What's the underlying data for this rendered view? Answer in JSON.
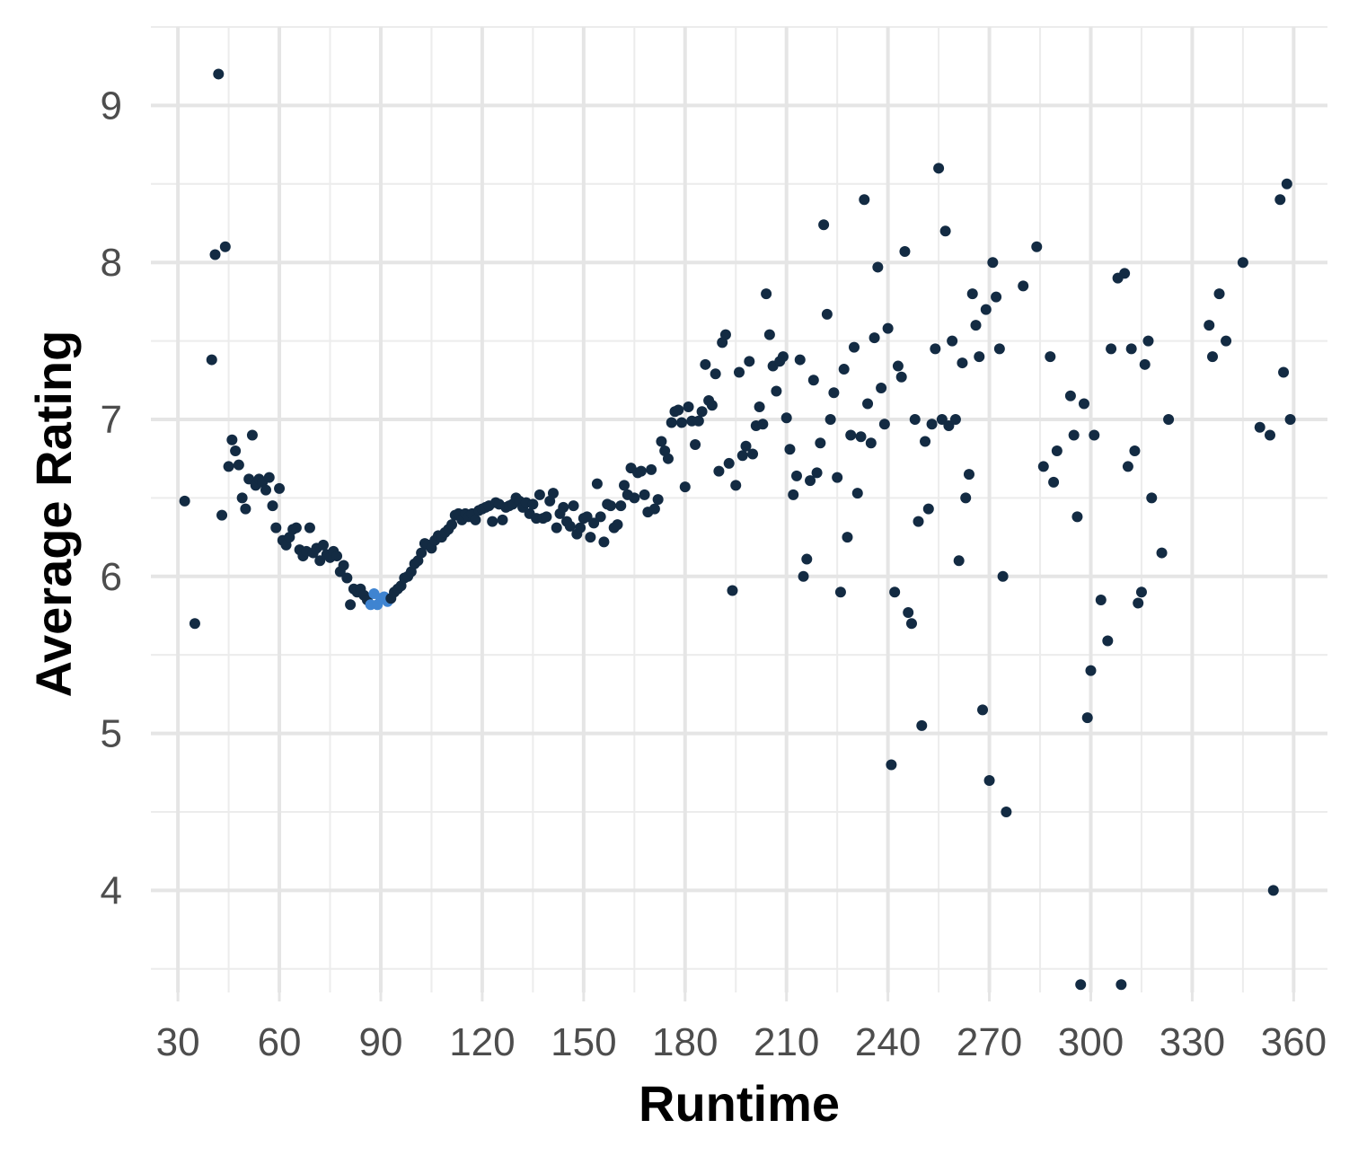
{
  "chart_data": {
    "type": "scatter",
    "xlabel": "Runtime",
    "ylabel": "Average Rating",
    "xlim": [
      22,
      370
    ],
    "ylim": [
      3.35,
      9.5
    ],
    "x_ticks": [
      30,
      60,
      90,
      120,
      150,
      180,
      210,
      240,
      270,
      300,
      330,
      360
    ],
    "y_ticks": [
      4,
      5,
      6,
      7,
      8,
      9
    ],
    "grid": true,
    "legend": "none",
    "colors": {
      "point": "#132B43",
      "point_high_count": "#3F84D1",
      "grid": "#e5e5e5"
    },
    "points": [
      [
        32,
        6.48
      ],
      [
        35,
        5.7
      ],
      [
        40,
        7.38
      ],
      [
        41,
        8.05
      ],
      [
        42,
        9.2
      ],
      [
        43,
        6.39
      ],
      [
        44,
        8.1
      ],
      [
        45,
        6.7
      ],
      [
        46,
        6.87
      ],
      [
        47,
        6.8
      ],
      [
        48,
        6.71
      ],
      [
        49,
        6.5
      ],
      [
        50,
        6.43
      ],
      [
        51,
        6.62
      ],
      [
        52,
        6.9
      ],
      [
        53,
        6.58
      ],
      [
        54,
        6.62
      ],
      [
        55,
        6.6
      ],
      [
        56,
        6.55
      ],
      [
        57,
        6.63
      ],
      [
        58,
        6.45
      ],
      [
        59,
        6.31
      ],
      [
        60,
        6.56
      ],
      [
        61,
        6.23
      ],
      [
        62,
        6.2
      ],
      [
        63,
        6.25
      ],
      [
        64,
        6.3
      ],
      [
        65,
        6.31
      ],
      [
        66,
        6.17
      ],
      [
        67,
        6.13
      ],
      [
        68,
        6.16
      ],
      [
        69,
        6.31
      ],
      [
        70,
        6.15
      ],
      [
        71,
        6.18
      ],
      [
        72,
        6.1
      ],
      [
        73,
        6.2
      ],
      [
        74,
        6.14
      ],
      [
        75,
        6.12
      ],
      [
        76,
        6.16
      ],
      [
        77,
        6.13
      ],
      [
        78,
        6.03
      ],
      [
        79,
        6.07
      ],
      [
        80,
        5.99
      ],
      [
        81,
        5.82
      ],
      [
        82,
        5.92
      ],
      [
        83,
        5.9
      ],
      [
        84,
        5.92
      ],
      [
        85,
        5.88
      ],
      [
        86,
        5.85
      ],
      [
        87,
        5.82
      ],
      [
        88,
        5.89
      ],
      [
        89,
        5.82
      ],
      [
        90,
        5.86
      ],
      [
        91,
        5.87
      ],
      [
        92,
        5.84
      ],
      [
        93,
        5.86
      ],
      [
        94,
        5.9
      ],
      [
        95,
        5.92
      ],
      [
        96,
        5.94
      ],
      [
        97,
        5.99
      ],
      [
        98,
        6.0
      ],
      [
        99,
        6.03
      ],
      [
        100,
        6.08
      ],
      [
        101,
        6.1
      ],
      [
        102,
        6.15
      ],
      [
        103,
        6.21
      ],
      [
        104,
        6.2
      ],
      [
        105,
        6.18
      ],
      [
        106,
        6.23
      ],
      [
        107,
        6.26
      ],
      [
        108,
        6.25
      ],
      [
        109,
        6.28
      ],
      [
        110,
        6.3
      ],
      [
        111,
        6.33
      ],
      [
        112,
        6.39
      ],
      [
        113,
        6.4
      ],
      [
        114,
        6.36
      ],
      [
        115,
        6.4
      ],
      [
        116,
        6.38
      ],
      [
        117,
        6.4
      ],
      [
        118,
        6.36
      ],
      [
        119,
        6.42
      ],
      [
        120,
        6.43
      ],
      [
        121,
        6.44
      ],
      [
        122,
        6.45
      ],
      [
        123,
        6.35
      ],
      [
        124,
        6.47
      ],
      [
        125,
        6.46
      ],
      [
        126,
        6.36
      ],
      [
        127,
        6.44
      ],
      [
        128,
        6.45
      ],
      [
        129,
        6.46
      ],
      [
        130,
        6.5
      ],
      [
        131,
        6.48
      ],
      [
        132,
        6.44
      ],
      [
        133,
        6.47
      ],
      [
        134,
        6.4
      ],
      [
        135,
        6.46
      ],
      [
        136,
        6.37
      ],
      [
        137,
        6.52
      ],
      [
        138,
        6.37
      ],
      [
        139,
        6.38
      ],
      [
        140,
        6.48
      ],
      [
        141,
        6.53
      ],
      [
        142,
        6.31
      ],
      [
        143,
        6.4
      ],
      [
        144,
        6.44
      ],
      [
        145,
        6.35
      ],
      [
        146,
        6.32
      ],
      [
        147,
        6.45
      ],
      [
        148,
        6.27
      ],
      [
        149,
        6.31
      ],
      [
        150,
        6.37
      ],
      [
        151,
        6.38
      ],
      [
        152,
        6.25
      ],
      [
        153,
        6.34
      ],
      [
        154,
        6.59
      ],
      [
        155,
        6.38
      ],
      [
        156,
        6.22
      ],
      [
        157,
        6.46
      ],
      [
        158,
        6.45
      ],
      [
        159,
        6.31
      ],
      [
        160,
        6.33
      ],
      [
        161,
        6.45
      ],
      [
        162,
        6.58
      ],
      [
        163,
        6.52
      ],
      [
        164,
        6.69
      ],
      [
        165,
        6.5
      ],
      [
        166,
        6.66
      ],
      [
        167,
        6.67
      ],
      [
        168,
        6.52
      ],
      [
        169,
        6.41
      ],
      [
        170,
        6.68
      ],
      [
        171,
        6.43
      ],
      [
        172,
        6.49
      ],
      [
        173,
        6.86
      ],
      [
        174,
        6.8
      ],
      [
        175,
        6.75
      ],
      [
        176,
        6.98
      ],
      [
        177,
        7.05
      ],
      [
        178,
        7.06
      ],
      [
        179,
        6.98
      ],
      [
        180,
        6.57
      ],
      [
        181,
        7.08
      ],
      [
        182,
        6.99
      ],
      [
        183,
        6.84
      ],
      [
        184,
        6.99
      ],
      [
        185,
        7.05
      ],
      [
        186,
        7.35
      ],
      [
        187,
        7.12
      ],
      [
        188,
        7.09
      ],
      [
        189,
        7.29
      ],
      [
        190,
        6.67
      ],
      [
        191,
        7.49
      ],
      [
        192,
        7.54
      ],
      [
        193,
        6.72
      ],
      [
        194,
        5.91
      ],
      [
        195,
        6.58
      ],
      [
        196,
        7.3
      ],
      [
        197,
        6.77
      ],
      [
        198,
        6.83
      ],
      [
        199,
        7.37
      ],
      [
        200,
        6.78
      ],
      [
        201,
        6.96
      ],
      [
        202,
        7.08
      ],
      [
        203,
        6.97
      ],
      [
        204,
        7.8
      ],
      [
        205,
        7.54
      ],
      [
        206,
        7.34
      ],
      [
        207,
        7.18
      ],
      [
        208,
        7.37
      ],
      [
        209,
        7.4
      ],
      [
        210,
        7.01
      ],
      [
        211,
        6.81
      ],
      [
        212,
        6.52
      ],
      [
        213,
        6.64
      ],
      [
        214,
        7.38
      ],
      [
        215,
        6.0
      ],
      [
        216,
        6.11
      ],
      [
        217,
        6.61
      ],
      [
        218,
        7.25
      ],
      [
        219,
        6.66
      ],
      [
        220,
        6.85
      ],
      [
        221,
        8.24
      ],
      [
        222,
        7.67
      ],
      [
        223,
        7.0
      ],
      [
        224,
        7.17
      ],
      [
        225,
        6.63
      ],
      [
        226,
        5.9
      ],
      [
        227,
        7.32
      ],
      [
        228,
        6.25
      ],
      [
        229,
        6.9
      ],
      [
        230,
        7.46
      ],
      [
        231,
        6.53
      ],
      [
        232,
        6.89
      ],
      [
        233,
        8.4
      ],
      [
        234,
        7.1
      ],
      [
        235,
        6.85
      ],
      [
        236,
        7.52
      ],
      [
        237,
        7.97
      ],
      [
        238,
        7.2
      ],
      [
        239,
        6.97
      ],
      [
        240,
        7.58
      ],
      [
        241,
        4.8
      ],
      [
        242,
        5.9
      ],
      [
        243,
        7.34
      ],
      [
        244,
        7.27
      ],
      [
        245,
        8.07
      ],
      [
        246,
        5.77
      ],
      [
        247,
        5.7
      ],
      [
        248,
        7.0
      ],
      [
        249,
        6.35
      ],
      [
        250,
        5.05
      ],
      [
        251,
        6.86
      ],
      [
        252,
        6.43
      ],
      [
        253,
        6.97
      ],
      [
        254,
        7.45
      ],
      [
        255,
        8.6
      ],
      [
        256,
        7.0
      ],
      [
        257,
        8.2
      ],
      [
        258,
        6.96
      ],
      [
        259,
        7.5
      ],
      [
        260,
        7.0
      ],
      [
        261,
        6.1
      ],
      [
        262,
        7.36
      ],
      [
        263,
        6.5
      ],
      [
        264,
        6.65
      ],
      [
        265,
        7.8
      ],
      [
        266,
        7.6
      ],
      [
        267,
        7.4
      ],
      [
        268,
        5.15
      ],
      [
        269,
        7.7
      ],
      [
        270,
        4.7
      ],
      [
        271,
        8.0
      ],
      [
        272,
        7.78
      ],
      [
        273,
        7.45
      ],
      [
        274,
        6.0
      ],
      [
        275,
        4.5
      ],
      [
        280,
        7.85
      ],
      [
        284,
        8.1
      ],
      [
        286,
        6.7
      ],
      [
        288,
        7.4
      ],
      [
        289,
        6.6
      ],
      [
        290,
        6.8
      ],
      [
        294,
        7.15
      ],
      [
        295,
        6.9
      ],
      [
        296,
        6.38
      ],
      [
        297,
        3.4
      ],
      [
        298,
        7.1
      ],
      [
        299,
        5.1
      ],
      [
        300,
        5.4
      ],
      [
        301,
        6.9
      ],
      [
        303,
        5.85
      ],
      [
        305,
        5.59
      ],
      [
        306,
        7.45
      ],
      [
        308,
        7.9
      ],
      [
        309,
        3.4
      ],
      [
        310,
        7.93
      ],
      [
        311,
        6.7
      ],
      [
        312,
        7.45
      ],
      [
        313,
        6.8
      ],
      [
        314,
        5.83
      ],
      [
        315,
        5.9
      ],
      [
        316,
        7.35
      ],
      [
        317,
        7.5
      ],
      [
        318,
        6.5
      ],
      [
        321,
        6.15
      ],
      [
        323,
        7.0
      ],
      [
        335,
        7.6
      ],
      [
        336,
        7.4
      ],
      [
        338,
        7.8
      ],
      [
        340,
        7.5
      ],
      [
        345,
        8.0
      ],
      [
        350,
        6.95
      ],
      [
        353,
        6.9
      ],
      [
        354,
        4.0
      ],
      [
        356,
        8.4
      ],
      [
        357,
        7.3
      ],
      [
        358,
        8.5
      ],
      [
        359,
        7.0
      ]
    ]
  }
}
